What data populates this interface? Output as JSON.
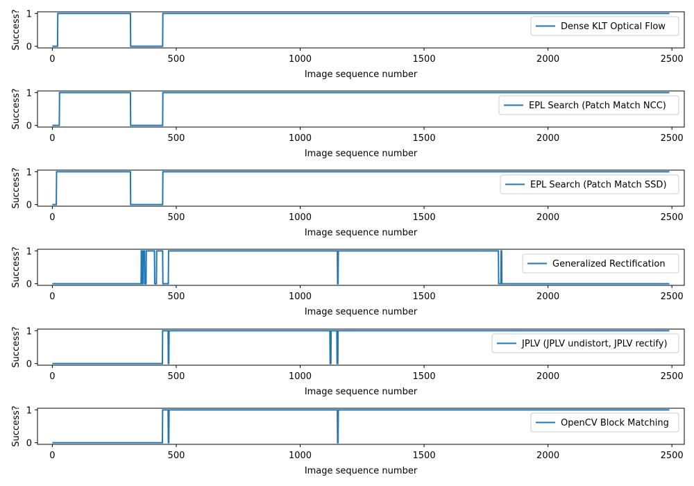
{
  "chart_data": [
    {
      "type": "line",
      "xlabel": "Image sequence number",
      "ylabel": "Success?",
      "xlim": [
        -60,
        2550
      ],
      "ylim": [
        -0.05,
        1.05
      ],
      "xticks": [
        0,
        500,
        1000,
        1500,
        2000,
        2500
      ],
      "yticks": [
        0,
        1
      ],
      "legend_loc": "upper-right",
      "color": "#1f77b4",
      "series": [
        {
          "name": "Dense KLT Optical Flow",
          "x": [
            0,
            21,
            22,
            315,
            316,
            445,
            446,
            2490
          ],
          "y": [
            0,
            0,
            1,
            1,
            0,
            0,
            1,
            1
          ]
        }
      ]
    },
    {
      "type": "line",
      "xlabel": "Image sequence number",
      "ylabel": "Success?",
      "xlim": [
        -60,
        2550
      ],
      "ylim": [
        -0.05,
        1.05
      ],
      "xticks": [
        0,
        500,
        1000,
        1500,
        2000,
        2500
      ],
      "yticks": [
        0,
        1
      ],
      "legend_loc": "upper-right",
      "color": "#1f77b4",
      "series": [
        {
          "name": "EPL Search (Patch Match NCC)",
          "x": [
            0,
            28,
            29,
            315,
            316,
            445,
            446,
            2490
          ],
          "y": [
            0,
            0,
            1,
            1,
            0,
            0,
            1,
            1
          ]
        }
      ]
    },
    {
      "type": "line",
      "xlabel": "Image sequence number",
      "ylabel": "Success?",
      "xlim": [
        -60,
        2550
      ],
      "ylim": [
        -0.05,
        1.05
      ],
      "xticks": [
        0,
        500,
        1000,
        1500,
        2000,
        2500
      ],
      "yticks": [
        0,
        1
      ],
      "legend_loc": "upper-right",
      "color": "#1f77b4",
      "series": [
        {
          "name": "EPL Search (Patch Match SSD)",
          "x": [
            0,
            16,
            17,
            315,
            316,
            445,
            446,
            2490
          ],
          "y": [
            0,
            0,
            1,
            1,
            0,
            0,
            1,
            1
          ]
        }
      ]
    },
    {
      "type": "line",
      "xlabel": "Image sequence number",
      "ylabel": "Success?",
      "xlim": [
        -60,
        2550
      ],
      "ylim": [
        -0.05,
        1.05
      ],
      "xticks": [
        0,
        500,
        1000,
        1500,
        2000,
        2500
      ],
      "yticks": [
        0,
        1
      ],
      "legend_loc": "upper-right",
      "color": "#1f77b4",
      "series": [
        {
          "name": "Generalized Rectification",
          "x": [
            0,
            358,
            359,
            362,
            363,
            366,
            367,
            372,
            373,
            378,
            379,
            412,
            413,
            420,
            421,
            445,
            446,
            468,
            469,
            472,
            473,
            1150,
            1151,
            1153,
            1154,
            1800,
            1801,
            1810,
            1811,
            1813,
            1814,
            2490
          ],
          "y": [
            0,
            0,
            1,
            1,
            0,
            0,
            1,
            1,
            0,
            0,
            1,
            1,
            0,
            0,
            1,
            1,
            0,
            0,
            1,
            1,
            1,
            1,
            0,
            0,
            1,
            1,
            0,
            0,
            1,
            1,
            0,
            0
          ]
        }
      ]
    },
    {
      "type": "line",
      "xlabel": "Image sequence number",
      "ylabel": "Success?",
      "xlim": [
        -60,
        2550
      ],
      "ylim": [
        -0.05,
        1.05
      ],
      "xticks": [
        0,
        500,
        1000,
        1500,
        2000,
        2500
      ],
      "yticks": [
        0,
        1
      ],
      "legend_loc": "upper-right",
      "color": "#1f77b4",
      "series": [
        {
          "name": "JPLV (JPLV undistort, JPLV rectify)",
          "x": [
            0,
            444,
            445,
            467,
            468,
            470,
            471,
            1120,
            1121,
            1124,
            1125,
            1148,
            1149,
            1152,
            1153,
            2490
          ],
          "y": [
            0,
            0,
            1,
            1,
            0,
            0,
            1,
            1,
            0,
            0,
            1,
            1,
            0,
            0,
            1,
            1
          ]
        }
      ]
    },
    {
      "type": "line",
      "xlabel": "Image sequence number",
      "ylabel": "Success?",
      "xlim": [
        -60,
        2550
      ],
      "ylim": [
        -0.05,
        1.05
      ],
      "xticks": [
        0,
        500,
        1000,
        1500,
        2000,
        2500
      ],
      "yticks": [
        0,
        1
      ],
      "legend_loc": "upper-right",
      "color": "#1f77b4",
      "series": [
        {
          "name": "OpenCV Block Matching",
          "x": [
            0,
            444,
            445,
            467,
            468,
            470,
            471,
            1150,
            1151,
            1153,
            1154,
            2490
          ],
          "y": [
            0,
            0,
            1,
            1,
            0,
            0,
            1,
            1,
            0,
            0,
            1,
            1
          ]
        }
      ]
    }
  ]
}
